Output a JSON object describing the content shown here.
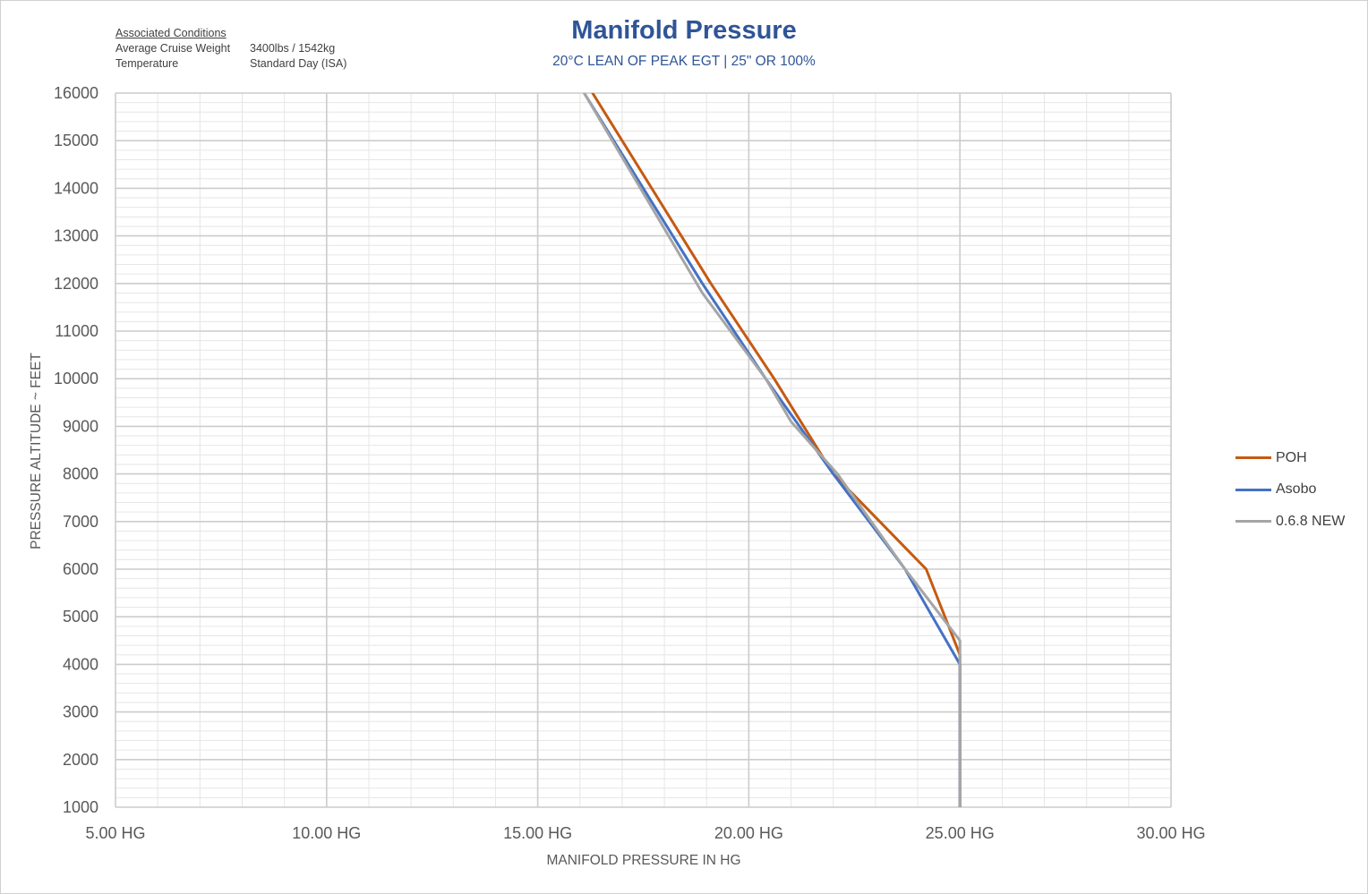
{
  "conditions": {
    "heading": "Associated Conditions",
    "rows": [
      {
        "label": "Average Cruise Weight",
        "value": "3400lbs / 1542kg"
      },
      {
        "label": "Temperature",
        "value": "Standard Day (ISA)"
      }
    ]
  },
  "chart_data": {
    "type": "line",
    "title": "Manifold Pressure",
    "subtitle": "20°C LEAN OF PEAK EGT | 25\" OR 100%",
    "xlabel": "MANIFOLD PRESSURE IN HG",
    "ylabel": "PRESSURE ALTITUDE ~ FEET",
    "xlim": [
      5,
      30
    ],
    "ylim": [
      1000,
      16000
    ],
    "x_ticks": [
      {
        "value": 5,
        "label": "5.00 HG"
      },
      {
        "value": 10,
        "label": "10.00 HG"
      },
      {
        "value": 15,
        "label": "15.00 HG"
      },
      {
        "value": 20,
        "label": "20.00 HG"
      },
      {
        "value": 25,
        "label": "25.00 HG"
      },
      {
        "value": 30,
        "label": "30.00 HG"
      }
    ],
    "y_ticks": [
      1000,
      2000,
      3000,
      4000,
      5000,
      6000,
      7000,
      8000,
      9000,
      10000,
      11000,
      12000,
      13000,
      14000,
      15000,
      16000
    ],
    "grid": true,
    "legend_position": "right",
    "series": [
      {
        "name": "POH",
        "color": "#c55a11",
        "points": [
          [
            25,
            1000
          ],
          [
            25,
            4000
          ],
          [
            25,
            4200
          ],
          [
            24.2,
            6000
          ],
          [
            22,
            8000
          ],
          [
            20.6,
            10000
          ],
          [
            19.1,
            12000
          ],
          [
            16.3,
            16000
          ]
        ]
      },
      {
        "name": "Asobo",
        "color": "#4472c4",
        "points": [
          [
            25,
            1000
          ],
          [
            25,
            4000
          ],
          [
            23.7,
            6000
          ],
          [
            22,
            8000
          ],
          [
            20.4,
            10000
          ],
          [
            18.9,
            12000
          ],
          [
            16.1,
            16000
          ]
        ]
      },
      {
        "name": "0.6.8 NEW",
        "color": "#a5a5a5",
        "points": [
          [
            25,
            1000
          ],
          [
            25,
            4500
          ],
          [
            23.7,
            6000
          ],
          [
            22.1,
            8000
          ],
          [
            21,
            9100
          ],
          [
            20.4,
            10000
          ],
          [
            18.9,
            11800
          ],
          [
            16.1,
            16000
          ]
        ]
      }
    ]
  }
}
